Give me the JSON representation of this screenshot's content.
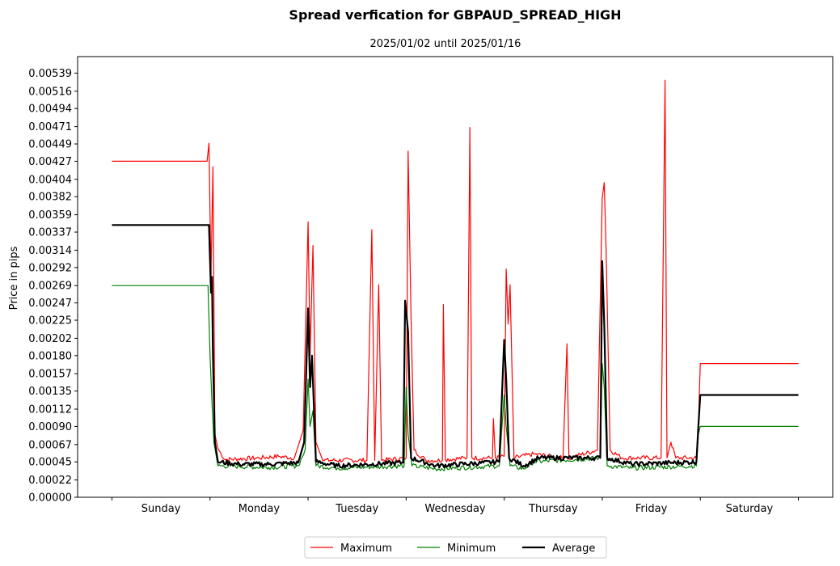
{
  "chart_data": {
    "type": "line",
    "title": "Spread verfication for GBPAUD_SPREAD_HIGH",
    "subtitle": "2025/01/02 until 2025/01/16",
    "ylabel": "Price in pips",
    "xlabel": "",
    "ylim": [
      0,
      0.0056
    ],
    "y_ticks": [
      "0.00000",
      "0.00022",
      "0.00045",
      "0.00067",
      "0.00090",
      "0.00112",
      "0.00135",
      "0.00157",
      "0.00180",
      "0.00202",
      "0.00225",
      "0.00247",
      "0.00269",
      "0.00292",
      "0.00314",
      "0.00337",
      "0.00359",
      "0.00382",
      "0.00404",
      "0.00427",
      "0.00449",
      "0.00471",
      "0.00494",
      "0.00516",
      "0.00539"
    ],
    "categories": [
      "Sunday",
      "Monday",
      "Tuesday",
      "Wednesday",
      "Thursday",
      "Friday",
      "Saturday"
    ],
    "x_unit": "day index (0 = start of Sunday, 7 = end of Saturday)",
    "xlim": [
      -0.35,
      7.35
    ],
    "legend_position": "bottom-center",
    "grid": false,
    "series": [
      {
        "name": "Maximum",
        "color": "#ff0000",
        "width": 1.2,
        "points": [
          [
            0,
            0.00427
          ],
          [
            0.97,
            0.00427
          ],
          [
            0.99,
            0.0045
          ],
          [
            1.01,
            0.0028
          ],
          [
            1.03,
            0.0042
          ],
          [
            1.05,
            0.0008
          ],
          [
            1.08,
            0.00062
          ],
          [
            1.15,
            0.00048
          ],
          [
            1.5,
            0.0005
          ],
          [
            1.7,
            0.00052
          ],
          [
            1.86,
            0.0005
          ],
          [
            1.95,
            0.00085
          ],
          [
            2.0,
            0.0035
          ],
          [
            2.02,
            0.0018
          ],
          [
            2.05,
            0.0032
          ],
          [
            2.08,
            0.0007
          ],
          [
            2.15,
            0.00047
          ],
          [
            2.6,
            0.00047
          ],
          [
            2.65,
            0.0034
          ],
          [
            2.68,
            0.00047
          ],
          [
            2.72,
            0.0027
          ],
          [
            2.75,
            0.00047
          ],
          [
            3.0,
            0.0005
          ],
          [
            3.02,
            0.0044
          ],
          [
            3.05,
            0.0023
          ],
          [
            3.08,
            0.0006
          ],
          [
            3.2,
            0.00047
          ],
          [
            3.37,
            0.00047
          ],
          [
            3.38,
            0.00245
          ],
          [
            3.4,
            0.00048
          ],
          [
            3.62,
            0.0005
          ],
          [
            3.63,
            0.0018
          ],
          [
            3.65,
            0.0047
          ],
          [
            3.67,
            0.0005
          ],
          [
            3.88,
            0.0005
          ],
          [
            3.89,
            0.001
          ],
          [
            3.91,
            0.0005
          ],
          [
            4.0,
            0.00052
          ],
          [
            4.02,
            0.0029
          ],
          [
            4.04,
            0.0022
          ],
          [
            4.06,
            0.0027
          ],
          [
            4.1,
            0.0005
          ],
          [
            4.3,
            0.00055
          ],
          [
            4.6,
            0.0005
          ],
          [
            4.64,
            0.00195
          ],
          [
            4.66,
            0.0005
          ],
          [
            4.95,
            0.0006
          ],
          [
            5.0,
            0.0038
          ],
          [
            5.02,
            0.004
          ],
          [
            5.04,
            0.0031
          ],
          [
            5.08,
            0.0006
          ],
          [
            5.2,
            0.0005
          ],
          [
            5.6,
            0.0005
          ],
          [
            5.64,
            0.0053
          ],
          [
            5.66,
            0.0005
          ],
          [
            5.7,
            0.0007
          ],
          [
            5.75,
            0.0005
          ],
          [
            5.96,
            0.0005
          ],
          [
            5.98,
            0.0009
          ],
          [
            6.0,
            0.0017
          ],
          [
            7.0,
            0.0017
          ]
        ]
      },
      {
        "name": "Minimum",
        "color": "#008000",
        "width": 1.2,
        "points": [
          [
            0,
            0.00269
          ],
          [
            0.98,
            0.00269
          ],
          [
            1.0,
            0.0018
          ],
          [
            1.02,
            0.0012
          ],
          [
            1.04,
            0.0007
          ],
          [
            1.08,
            0.0004
          ],
          [
            1.3,
            0.00039
          ],
          [
            1.6,
            0.00038
          ],
          [
            1.9,
            0.0004
          ],
          [
            1.97,
            0.0006
          ],
          [
            2.0,
            0.0015
          ],
          [
            2.02,
            0.0009
          ],
          [
            2.05,
            0.0011
          ],
          [
            2.08,
            0.0004
          ],
          [
            2.3,
            0.00037
          ],
          [
            2.98,
            0.0004
          ],
          [
            3.0,
            0.0014
          ],
          [
            3.02,
            0.0008
          ],
          [
            3.06,
            0.0004
          ],
          [
            3.3,
            0.00036
          ],
          [
            3.95,
            0.0004
          ],
          [
            4.0,
            0.0013
          ],
          [
            4.02,
            0.0009
          ],
          [
            4.06,
            0.0004
          ],
          [
            4.2,
            0.00036
          ],
          [
            4.3,
            0.00045
          ],
          [
            4.98,
            0.0005
          ],
          [
            5.0,
            0.0017
          ],
          [
            5.02,
            0.0014
          ],
          [
            5.05,
            0.0004
          ],
          [
            5.3,
            0.00037
          ],
          [
            5.96,
            0.0004
          ],
          [
            5.98,
            0.0008
          ],
          [
            6.0,
            0.0009
          ],
          [
            7.0,
            0.0009
          ]
        ]
      },
      {
        "name": "Average",
        "color": "#000000",
        "width": 2.2,
        "points": [
          [
            0,
            0.00346
          ],
          [
            0.99,
            0.00346
          ],
          [
            1.01,
            0.0026
          ],
          [
            1.02,
            0.0028
          ],
          [
            1.03,
            0.0018
          ],
          [
            1.05,
            0.0007
          ],
          [
            1.08,
            0.00045
          ],
          [
            1.3,
            0.00042
          ],
          [
            1.6,
            0.00042
          ],
          [
            1.9,
            0.00044
          ],
          [
            1.96,
            0.0007
          ],
          [
            2.0,
            0.0024
          ],
          [
            2.02,
            0.0014
          ],
          [
            2.04,
            0.0018
          ],
          [
            2.08,
            0.00045
          ],
          [
            2.3,
            0.0004
          ],
          [
            2.97,
            0.00044
          ],
          [
            2.99,
            0.0025
          ],
          [
            3.02,
            0.0021
          ],
          [
            3.05,
            0.0005
          ],
          [
            3.3,
            0.0004
          ],
          [
            3.95,
            0.00045
          ],
          [
            4.0,
            0.002
          ],
          [
            4.02,
            0.0015
          ],
          [
            4.05,
            0.0005
          ],
          [
            4.2,
            0.0004
          ],
          [
            4.35,
            0.0005
          ],
          [
            4.98,
            0.0005
          ],
          [
            5.0,
            0.003
          ],
          [
            5.02,
            0.0022
          ],
          [
            5.05,
            0.0005
          ],
          [
            5.3,
            0.00042
          ],
          [
            5.96,
            0.00045
          ],
          [
            5.98,
            0.0009
          ],
          [
            6.0,
            0.0013
          ],
          [
            7.0,
            0.0013
          ]
        ]
      }
    ]
  }
}
